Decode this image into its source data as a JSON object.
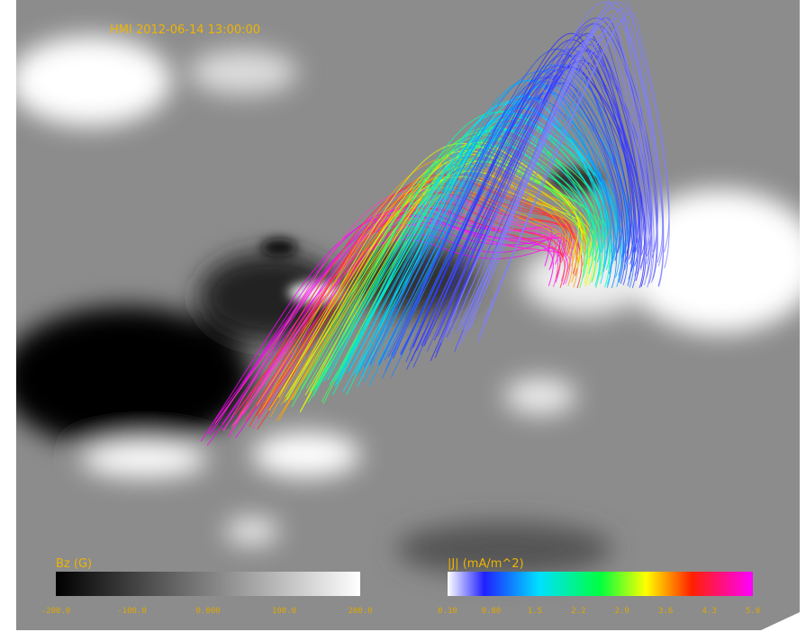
{
  "title": "HMI 2012-06-14  13:00:00",
  "colorbars": [
    {
      "label": "Bz (G)",
      "ticks": [
        "-200.0",
        "-100.0",
        "0.000",
        "100.0",
        "200.0"
      ]
    },
    {
      "label": "|J| (mA/m^2)",
      "ticks": [
        "0.10",
        "0.80",
        "1.5",
        "2.2",
        "2.9",
        "3.6",
        "4.3",
        "5.0"
      ]
    }
  ]
}
